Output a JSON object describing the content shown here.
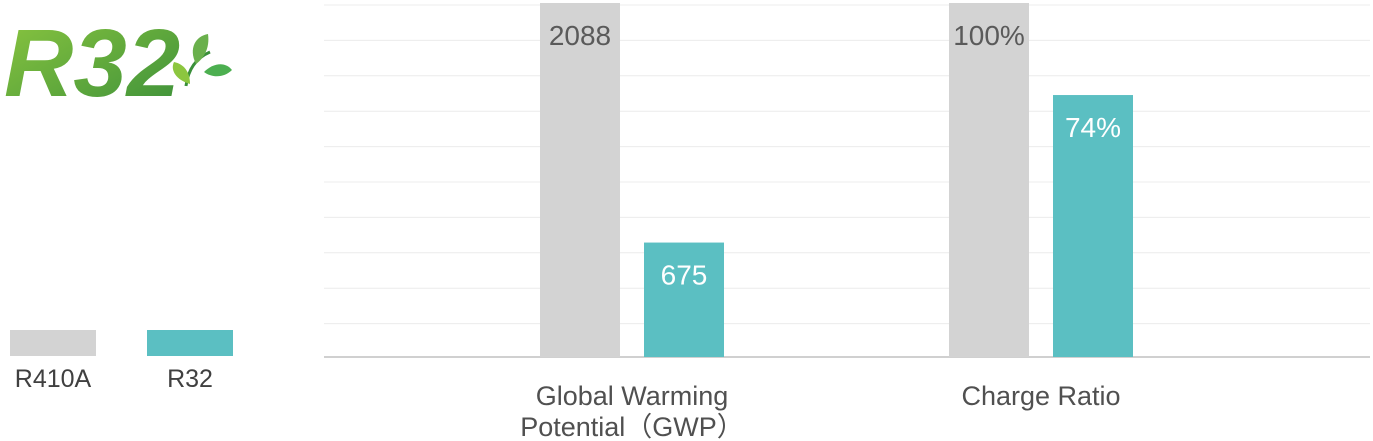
{
  "logo": {
    "text": "R32",
    "color_start": "#8cc63f",
    "color_end": "#3a8f3a"
  },
  "legend": [
    {
      "label": "R410A",
      "color": "#d3d3d3"
    },
    {
      "label": "R32",
      "color": "#5bbfc2"
    }
  ],
  "chart_data": {
    "type": "bar",
    "grid": true,
    "legend_position": "bottom-left",
    "groups": [
      {
        "label_lines": [
          "Global Warming",
          "Potential（GWP）"
        ],
        "ylim": [
          0,
          2088
        ],
        "bars": [
          {
            "series": "R410A",
            "value": 2088,
            "label": "2088"
          },
          {
            "series": "R32",
            "value": 675,
            "label": "675"
          }
        ]
      },
      {
        "label_lines": [
          "Charge Ratio"
        ],
        "ylim": [
          0,
          100
        ],
        "bars": [
          {
            "series": "R410A",
            "value": 100,
            "label": "100%"
          },
          {
            "series": "R32",
            "value": 74,
            "label": "74%"
          }
        ]
      }
    ],
    "colors": {
      "R410A": "#d3d3d3",
      "R32": "#5bbfc2"
    }
  }
}
